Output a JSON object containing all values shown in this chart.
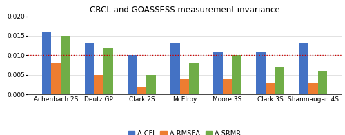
{
  "title": "CBCL and GOASSESS measurement invariance",
  "categories": [
    "Achenbach 2S",
    "Deutz GP",
    "Clark 2S",
    "McElroy",
    "Moore 3S",
    "Clark 3S",
    "Shanmaugan 4S"
  ],
  "cfi": [
    0.016,
    0.013,
    0.01,
    0.013,
    0.011,
    0.011,
    0.013
  ],
  "rmsea": [
    0.008,
    0.005,
    0.002,
    0.004,
    0.004,
    0.003,
    0.003
  ],
  "srmr": [
    0.015,
    0.012,
    0.005,
    0.008,
    0.01,
    0.007,
    0.006
  ],
  "cfi_color": "#4472C4",
  "rmsea_color": "#ED7D31",
  "srmr_color": "#70AD47",
  "ref_line": 0.01,
  "ref_color": "#CC0000",
  "ylim": [
    0.0,
    0.02
  ],
  "yticks": [
    0.0,
    0.005,
    0.01,
    0.015,
    0.02
  ],
  "legend_labels": [
    "Δ CFI",
    "Δ RMSEA",
    "Δ SRMR"
  ],
  "bar_width": 0.22,
  "title_fontsize": 8.5,
  "tick_fontsize": 6.5,
  "legend_fontsize": 7
}
